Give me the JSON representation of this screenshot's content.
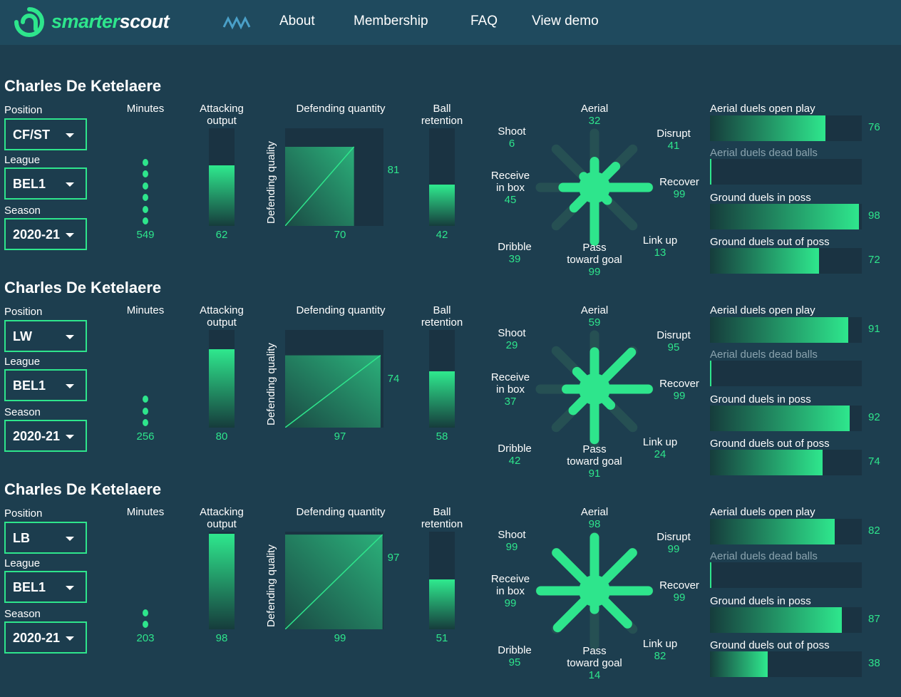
{
  "brand": {
    "name_part1": "smarter",
    "name_part2": "scout"
  },
  "nav": {
    "items": [
      "About",
      "Membership",
      "FAQ",
      "View demo"
    ]
  },
  "colors": {
    "accent": "#2ee58c",
    "background": "#1d3e4f",
    "topbar": "#1f4a5e",
    "track": "#1a3342"
  },
  "labels": {
    "position": "Position",
    "league": "League",
    "season": "Season",
    "minutes": "Minutes",
    "attacking_output_1": "Attacking",
    "attacking_output_2": "output",
    "defending_quantity": "Defending quantity",
    "defending_quality": "Defending quality",
    "ball_retention_1": "Ball",
    "ball_retention_2": "retention",
    "aerial": "Aerial",
    "shoot": "Shoot",
    "disrupt": "Disrupt",
    "receive_1": "Receive",
    "receive_2": "in box",
    "recover": "Recover",
    "link_up": "Link up",
    "dribble": "Dribble",
    "pass_1": "Pass",
    "pass_2": "toward goal",
    "aerial_open": "Aerial duels open play",
    "aerial_dead": "Aerial duels dead balls",
    "ground_in": "Ground duels in poss",
    "ground_out": "Ground duels out of poss"
  },
  "players": [
    {
      "name": "Charles De Ketelaere",
      "position": "CF/ST",
      "league": "BEL1",
      "season": "2020-21",
      "minutes": 549,
      "minutes_dots": 6,
      "attacking_output": 62,
      "defending_quantity": 70,
      "defending_quality": 81,
      "ball_retention": 42,
      "style": {
        "aerial": 32,
        "disrupt": 41,
        "recover": 99,
        "link_up": 13,
        "pass_toward_goal": 99,
        "dribble": 39,
        "receive_in_box": 45,
        "shoot": 6
      },
      "duels": {
        "aerial_open": 76,
        "aerial_dead": null,
        "ground_in": 98,
        "ground_out": 72
      }
    },
    {
      "name": "Charles De Ketelaere",
      "position": "LW",
      "league": "BEL1",
      "season": "2020-21",
      "minutes": 256,
      "minutes_dots": 3,
      "attacking_output": 80,
      "defending_quantity": 97,
      "defending_quality": 74,
      "ball_retention": 58,
      "style": {
        "aerial": 59,
        "disrupt": 95,
        "recover": 99,
        "link_up": 24,
        "pass_toward_goal": 91,
        "dribble": 42,
        "receive_in_box": 37,
        "shoot": 29
      },
      "duels": {
        "aerial_open": 91,
        "aerial_dead": null,
        "ground_in": 92,
        "ground_out": 74
      }
    },
    {
      "name": "Charles De Ketelaere",
      "position": "LB",
      "league": "BEL1",
      "season": "2020-21",
      "minutes": 203,
      "minutes_dots": 2,
      "attacking_output": 98,
      "defending_quantity": 99,
      "defending_quality": 97,
      "ball_retention": 51,
      "style": {
        "aerial": 98,
        "disrupt": 99,
        "recover": 99,
        "link_up": 82,
        "pass_toward_goal": 14,
        "dribble": 95,
        "receive_in_box": 99,
        "shoot": 99
      },
      "duels": {
        "aerial_open": 82,
        "aerial_dead": null,
        "ground_in": 87,
        "ground_out": 38
      }
    }
  ]
}
